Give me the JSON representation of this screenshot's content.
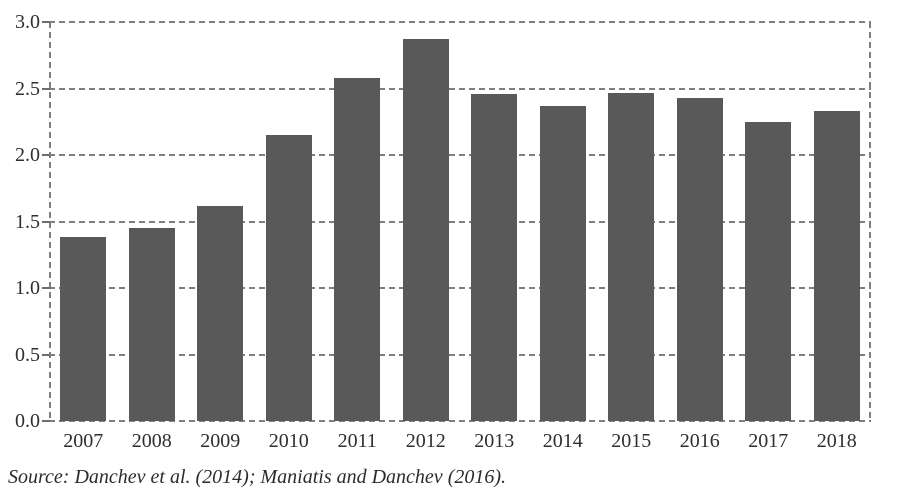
{
  "chart_data": {
    "type": "bar",
    "categories": [
      "2007",
      "2008",
      "2009",
      "2010",
      "2011",
      "2012",
      "2013",
      "2014",
      "2015",
      "2016",
      "2017",
      "2018"
    ],
    "values": [
      1.38,
      1.45,
      1.62,
      2.15,
      2.58,
      2.87,
      2.46,
      2.37,
      2.47,
      2.43,
      2.25,
      2.33
    ],
    "title": "",
    "xlabel": "",
    "ylabel": "",
    "ylim": [
      0,
      3
    ],
    "ytick_step": 0.5,
    "ytick_labels": [
      "0.0",
      "0.5",
      "1.0",
      "1.5",
      "2.0",
      "2.5",
      "3.0"
    ],
    "grid": "dashed horizontal gridlines with dashed plot border, no legend",
    "bar_color": "#595959",
    "gridline_color": "#7f7f7f",
    "text_color": "#2f2f2f",
    "source_note": "Source: Danchev et al. (2014); Maniatis and Danchev (2016)."
  }
}
